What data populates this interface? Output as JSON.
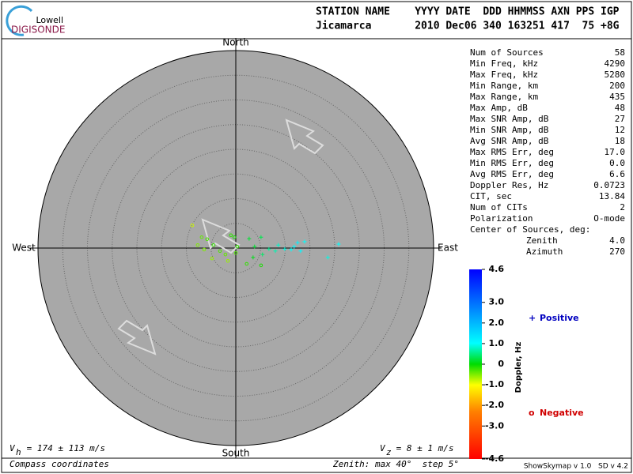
{
  "header": {
    "logo_top": "Lowell",
    "logo_bottom": "DIGISONDE",
    "columns": "STATION NAME    YYYY DATE  DDD HHMMSS AXN PPS IGP",
    "values": "Jicamarca       2010 Dec06 340 163251 417  75 +8G"
  },
  "stats": {
    "rows": [
      [
        "Num of Sources",
        "58"
      ],
      [
        "Min Freq, kHz",
        "4290"
      ],
      [
        "Max Freq, kHz",
        "5280"
      ],
      [
        "Min Range, km",
        "200"
      ],
      [
        "Max Range, km",
        "435"
      ],
      [
        "Max Amp, dB",
        "48"
      ],
      [
        "Max SNR Amp, dB",
        "27"
      ],
      [
        "Min SNR Amp, dB",
        "12"
      ],
      [
        "Avg SNR Amp, dB",
        "18"
      ],
      [
        "Max RMS Err, deg",
        "17.0"
      ],
      [
        "Min RMS Err, deg",
        "0.0"
      ],
      [
        "Avg RMS Err, deg",
        "6.6"
      ],
      [
        "Doppler Res, Hz",
        "0.0723"
      ],
      [
        "CIT, sec",
        "13.84"
      ],
      [
        "Num of CITs",
        "2"
      ],
      [
        "Polarization",
        "O-mode"
      ]
    ],
    "center_title": "Center of Sources, deg:",
    "center_rows": [
      [
        "Zenith",
        "4.0"
      ],
      [
        "Azimuth",
        "270"
      ]
    ]
  },
  "chart_data": {
    "type": "skymap",
    "directions": {
      "north": "North",
      "south": "South",
      "west": "West",
      "east": "East"
    },
    "rlim": [
      0,
      40
    ],
    "rticks": [
      5,
      10,
      15,
      20,
      25,
      30,
      35
    ],
    "x": [
      -8.8,
      -7.7,
      -6.9,
      -5.8,
      -6.4,
      -4.8,
      -4.5,
      -3.2,
      -2.1,
      -1.6,
      -1.0,
      -0.3,
      0.3,
      0.0,
      2.7,
      3.5,
      2.2,
      5.1,
      5.4,
      6.7,
      8.0,
      8.6,
      9.9,
      11.2,
      11.8,
      12.5,
      13.1,
      13.9,
      18.6,
      20.8,
      5.1,
      3.8
    ],
    "y": [
      4.6,
      0.6,
      2.2,
      1.8,
      -0.3,
      -2.1,
      0.6,
      -0.6,
      -1.3,
      -2.6,
      2.6,
      2.2,
      0.3,
      -1.0,
      1.9,
      -1.9,
      -3.2,
      2.2,
      -1.3,
      -0.2,
      -0.6,
      0.6,
      -0.2,
      -0.3,
      0.3,
      1.1,
      -0.6,
      1.3,
      -1.9,
      0.8,
      -3.5,
      0.3
    ],
    "doppler": [
      -0.8,
      -0.5,
      -0.4,
      -0.3,
      -0.5,
      -0.6,
      -0.2,
      -0.3,
      -0.4,
      -0.6,
      -0.2,
      -0.1,
      -0.2,
      -0.3,
      0.2,
      0.1,
      -0.2,
      0.3,
      0.4,
      0.6,
      0.7,
      0.8,
      0.9,
      1.0,
      1.1,
      1.2,
      1.1,
      1.0,
      0.9,
      1.0,
      -0.1,
      0.2
    ],
    "colorbar": {
      "label": "Doppler, Hz",
      "lim": [
        -4.6,
        4.6
      ],
      "ticks": [
        4.6,
        {
          "value": 3,
          "label": "3.0"
        },
        {
          "value": 2,
          "label": "2.0"
        },
        {
          "value": 1,
          "label": "1.0"
        },
        0,
        {
          "value": -1,
          "label": "-1.0"
        },
        {
          "value": -2,
          "label": "-2.0"
        },
        {
          "value": -3,
          "label": "-3.0"
        },
        -4.6
      ]
    },
    "legend": {
      "positive_symbol": "+",
      "positive": "Positive",
      "negative_symbol": "o",
      "negative": "Negative"
    },
    "footer": {
      "vh_symbol": "V",
      "vh_sub": "h",
      "vh_text": " = 174 ± 113 m/s",
      "vz_symbol": "V",
      "vz_sub": "z",
      "vz_text": " = 8 ± 1 m/s",
      "coords": "Compass coordinates",
      "zenith": "Zenith: max 40°  step 5°",
      "version": "ShowSkymap v 1.0   SD v 4.2"
    }
  }
}
